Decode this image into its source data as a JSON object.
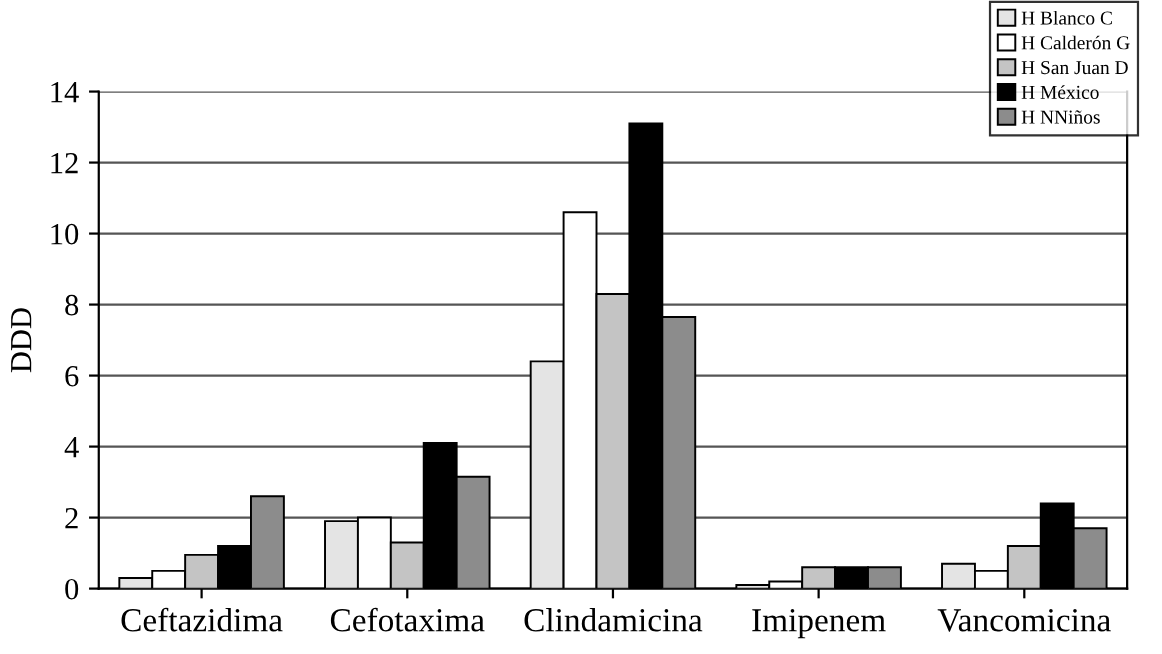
{
  "chart_data": {
    "type": "bar",
    "ylabel": "DDD",
    "categories": [
      "Ceftazidima",
      "Cefotaxima",
      "Clindamicina",
      "Imipenem",
      "Vancomicina"
    ],
    "series": [
      {
        "name": "H Blanco C",
        "color": "#e4e4e4",
        "values": [
          0.3,
          1.9,
          6.4,
          0.1,
          0.7
        ]
      },
      {
        "name": "H Calderón G",
        "color": "#ffffff",
        "values": [
          0.5,
          2.0,
          10.6,
          0.2,
          0.5
        ]
      },
      {
        "name": "H San Juan D",
        "color": "#c4c4c4",
        "values": [
          0.95,
          1.3,
          8.3,
          0.6,
          1.2
        ]
      },
      {
        "name": "H México",
        "color": "#000000",
        "values": [
          1.2,
          4.1,
          13.1,
          0.6,
          2.4
        ]
      },
      {
        "name": "H NNiños",
        "color": "#8c8c8c",
        "values": [
          2.6,
          3.15,
          7.65,
          0.6,
          1.7
        ]
      }
    ],
    "ylim": [
      0,
      14
    ],
    "yticks": [
      0,
      2,
      4,
      6,
      8,
      10,
      12,
      14
    ],
    "grid": "y",
    "legend": "top right"
  }
}
